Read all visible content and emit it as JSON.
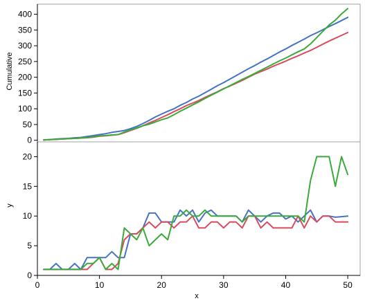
{
  "chart_data": [
    {
      "type": "line",
      "panel": "top",
      "ylabel": "Cumulative",
      "xlabel": "",
      "xlim": [
        0,
        52
      ],
      "ylim": [
        -5,
        432
      ],
      "yticks": [
        0,
        50,
        100,
        150,
        200,
        250,
        300,
        350,
        400
      ],
      "grid": false,
      "legend": "none",
      "series": [
        {
          "color": "#4472c4",
          "x": [
            1,
            2,
            3,
            4,
            5,
            6,
            7,
            8,
            9,
            10,
            11,
            12,
            13,
            14,
            15,
            16,
            17,
            18,
            19,
            20,
            21,
            22,
            23,
            24,
            25,
            26,
            27,
            28,
            29,
            30,
            31,
            32,
            33,
            34,
            35,
            36,
            37,
            38,
            39,
            40,
            41,
            42,
            43,
            44,
            45,
            46,
            47,
            48,
            49,
            50
          ],
          "values": [
            1,
            2,
            4,
            5,
            6,
            8,
            9,
            12,
            15,
            18,
            21,
            25,
            28,
            31,
            37,
            44,
            53,
            63,
            74,
            83,
            92,
            100,
            111,
            120,
            131,
            140,
            151,
            162,
            173,
            183,
            194,
            205,
            216,
            227,
            237,
            248,
            258,
            269,
            280,
            290,
            301,
            311,
            321,
            332,
            341,
            351,
            361,
            370,
            380,
            390
          ]
        },
        {
          "color": "#d94b5e",
          "x": [
            1,
            2,
            3,
            4,
            5,
            6,
            7,
            8,
            9,
            10,
            11,
            12,
            13,
            14,
            15,
            16,
            17,
            18,
            19,
            20,
            21,
            22,
            23,
            24,
            25,
            26,
            27,
            28,
            29,
            30,
            31,
            32,
            33,
            34,
            35,
            36,
            37,
            38,
            39,
            40,
            41,
            42,
            43,
            44,
            45,
            46,
            47,
            48,
            49,
            50
          ],
          "values": [
            1,
            2,
            3,
            4,
            5,
            6,
            7,
            8,
            10,
            13,
            14,
            16,
            18,
            24,
            31,
            38,
            46,
            55,
            63,
            72,
            81,
            91,
            100,
            110,
            118,
            126,
            136,
            145,
            154,
            164,
            172,
            181,
            190,
            200,
            210,
            218,
            226,
            235,
            243,
            251,
            260,
            268,
            277,
            285,
            295,
            305,
            315,
            324,
            333,
            342
          ]
        },
        {
          "color": "#3aaa3a",
          "x": [
            1,
            2,
            3,
            4,
            5,
            6,
            7,
            8,
            9,
            10,
            11,
            12,
            13,
            14,
            15,
            16,
            17,
            18,
            19,
            20,
            21,
            22,
            23,
            24,
            25,
            26,
            27,
            28,
            29,
            30,
            31,
            32,
            33,
            34,
            35,
            36,
            37,
            38,
            39,
            40,
            41,
            42,
            43,
            44,
            45,
            46,
            47,
            48,
            49,
            50
          ],
          "values": [
            1,
            2,
            3,
            4,
            5,
            6,
            7,
            9,
            11,
            14,
            15,
            17,
            18,
            26,
            33,
            39,
            46,
            51,
            58,
            65,
            71,
            81,
            92,
            102,
            112,
            122,
            133,
            143,
            153,
            163,
            173,
            183,
            193,
            202,
            212,
            222,
            232,
            242,
            252,
            261,
            271,
            281,
            290,
            306,
            326,
            346,
            366,
            381,
            401,
            418
          ]
        }
      ]
    },
    {
      "type": "line",
      "panel": "bottom",
      "ylabel": "y",
      "xlabel": "x",
      "xlim": [
        0,
        52
      ],
      "ylim": [
        0,
        22.5
      ],
      "xticks": [
        0,
        10,
        20,
        30,
        40,
        50
      ],
      "yticks": [
        0,
        5,
        10,
        15,
        20
      ],
      "grid": false,
      "legend": "none",
      "series": [
        {
          "color": "#4472c4",
          "x": [
            1,
            2,
            3,
            4,
            5,
            6,
            7,
            8,
            9,
            10,
            11,
            12,
            13,
            14,
            15,
            16,
            17,
            18,
            19,
            20,
            21,
            22,
            23,
            24,
            25,
            26,
            27,
            28,
            29,
            30,
            31,
            32,
            33,
            34,
            35,
            36,
            37,
            38,
            39,
            40,
            41,
            42,
            43,
            44,
            45,
            46,
            47,
            48,
            49,
            50
          ],
          "values": [
            1,
            1,
            2,
            1,
            1,
            2,
            1,
            3,
            3,
            3,
            3,
            4,
            3,
            3,
            7,
            7,
            8,
            10.5,
            10.5,
            9,
            9,
            9,
            11,
            10,
            11,
            9,
            10.5,
            11,
            10,
            10,
            10,
            10,
            9,
            11,
            10,
            9,
            10,
            10.5,
            10.5,
            9.5,
            10,
            9,
            10,
            11,
            9,
            10,
            10,
            9.8,
            9.9,
            10
          ]
        },
        {
          "color": "#d94b5e",
          "x": [
            1,
            2,
            3,
            4,
            5,
            6,
            7,
            8,
            9,
            10,
            11,
            12,
            13,
            14,
            15,
            16,
            17,
            18,
            19,
            20,
            21,
            22,
            23,
            24,
            25,
            26,
            27,
            28,
            29,
            30,
            31,
            32,
            33,
            34,
            35,
            36,
            37,
            38,
            39,
            40,
            41,
            42,
            43,
            44,
            45,
            46,
            47,
            48,
            49,
            50
          ],
          "values": [
            1,
            1,
            1,
            1,
            1,
            1,
            1,
            1,
            2,
            3,
            1,
            1,
            2,
            6,
            7,
            7,
            8,
            9,
            8,
            9,
            9,
            8,
            9,
            9,
            10,
            8,
            8,
            9,
            9,
            8,
            9,
            9,
            8,
            10,
            10,
            8,
            9,
            8,
            8,
            8,
            8,
            10,
            8,
            10,
            9,
            10,
            10,
            9,
            9,
            9
          ]
        },
        {
          "color": "#3aaa3a",
          "x": [
            1,
            2,
            3,
            4,
            5,
            6,
            7,
            8,
            9,
            10,
            11,
            12,
            13,
            14,
            15,
            16,
            17,
            18,
            19,
            20,
            21,
            22,
            23,
            24,
            25,
            26,
            27,
            28,
            29,
            30,
            31,
            32,
            33,
            34,
            35,
            36,
            37,
            38,
            39,
            40,
            41,
            42,
            43,
            44,
            45,
            46,
            47,
            48,
            49,
            50
          ],
          "values": [
            1,
            1,
            1,
            1,
            1,
            1,
            1,
            2,
            2,
            3,
            1,
            2,
            1,
            8,
            7,
            6,
            8,
            5,
            6,
            7,
            6,
            10,
            10,
            11,
            10,
            10,
            11,
            10,
            10,
            10,
            10,
            10,
            9,
            10,
            10,
            10,
            10,
            10,
            10,
            10,
            10,
            10,
            9,
            16,
            20,
            20,
            20,
            15,
            20,
            17
          ]
        }
      ]
    }
  ]
}
